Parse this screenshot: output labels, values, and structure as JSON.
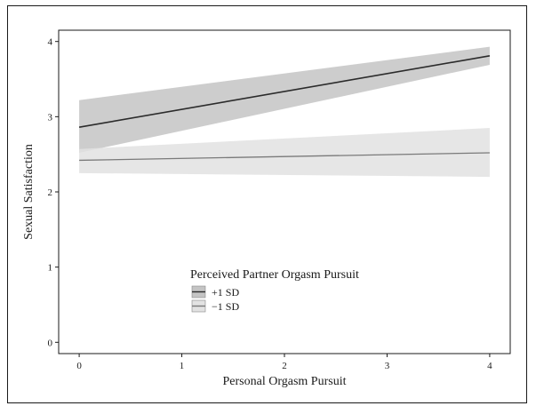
{
  "chart_data": {
    "type": "line",
    "title": "",
    "xlabel": "Personal Orgasm Pursuit",
    "ylabel": "Sexual Satisfaction",
    "xlim": [
      -0.2,
      4.2
    ],
    "ylim": [
      -0.15,
      4.15
    ],
    "xticks": [
      0,
      1,
      2,
      3,
      4
    ],
    "yticks": [
      0,
      1,
      2,
      3,
      4
    ],
    "grid": false,
    "legend": {
      "title": "Perceived Partner Orgasm Pursuit",
      "placement": "bottom-center"
    },
    "series": [
      {
        "name": "+1 SD",
        "x": [
          0,
          4
        ],
        "y": [
          2.86,
          3.81
        ],
        "ci_lower": [
          2.52,
          3.69
        ],
        "ci_upper": [
          3.22,
          3.93
        ],
        "line_color": "#2b2b2b",
        "band_color": "#c4c4c4"
      },
      {
        "name": "−1 SD",
        "x": [
          0,
          4
        ],
        "y": [
          2.42,
          2.52
        ],
        "ci_lower": [
          2.25,
          2.2
        ],
        "ci_upper": [
          2.57,
          2.85
        ],
        "line_color": "#7a7a7a",
        "band_color": "#e2e2e2"
      }
    ]
  }
}
